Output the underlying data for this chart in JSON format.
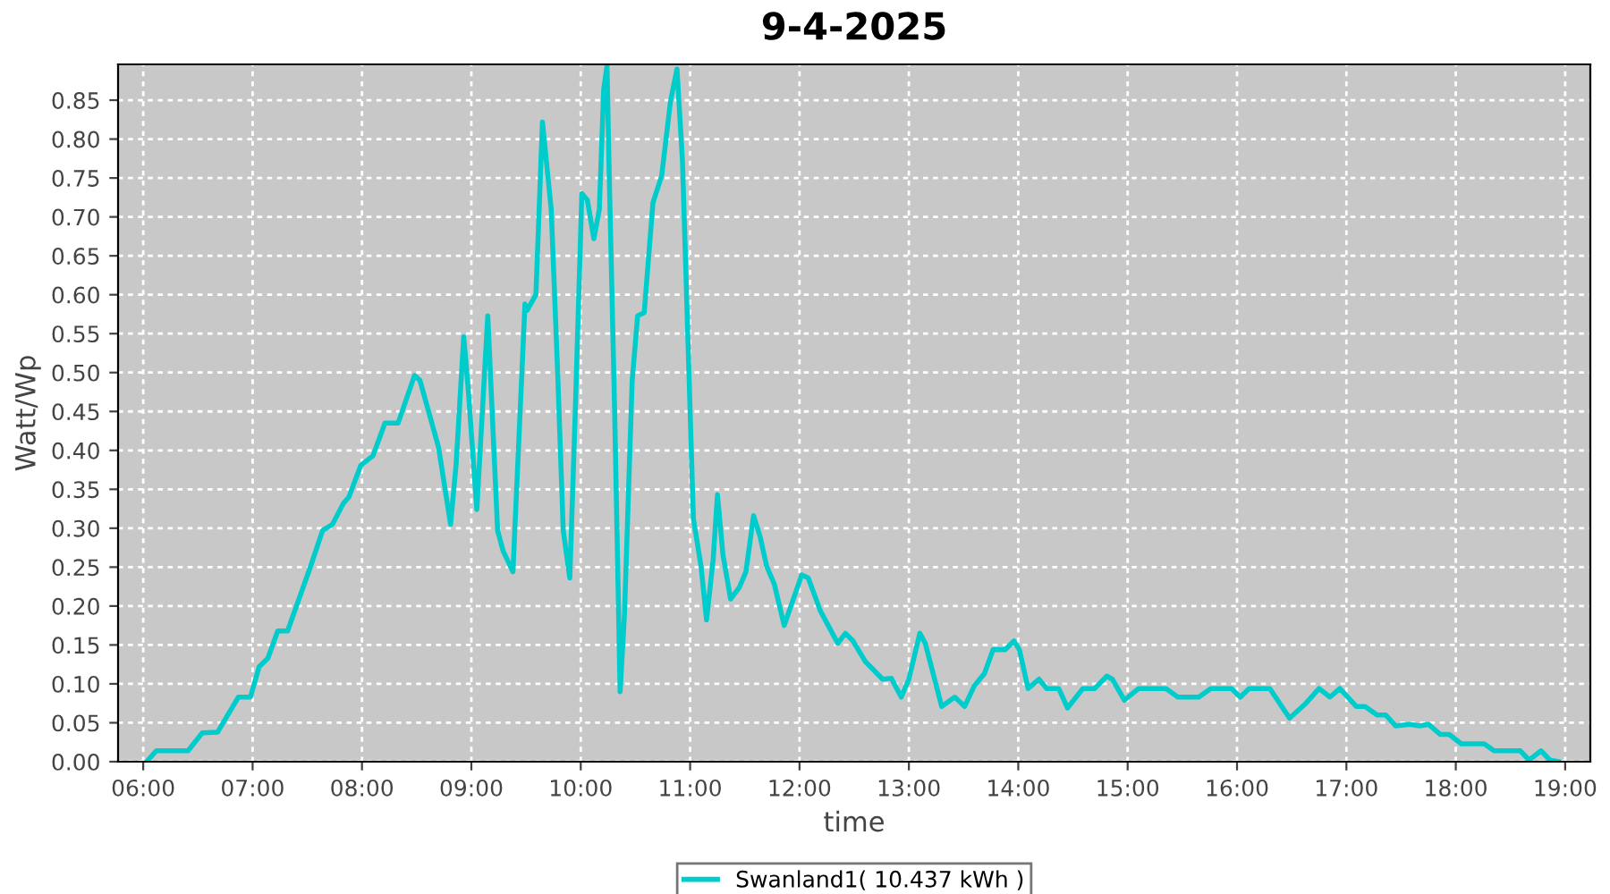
{
  "chart_data": {
    "type": "line",
    "title": "9-4-2025",
    "xlabel": "time",
    "ylabel": "Watt/Wp",
    "xlim": [
      5.77,
      19.23
    ],
    "ylim": [
      0,
      0.896
    ],
    "xticks": [
      {
        "value": 6,
        "label": "06:00"
      },
      {
        "value": 7,
        "label": "07:00"
      },
      {
        "value": 8,
        "label": "08:00"
      },
      {
        "value": 9,
        "label": "09:00"
      },
      {
        "value": 10,
        "label": "10:00"
      },
      {
        "value": 11,
        "label": "11:00"
      },
      {
        "value": 12,
        "label": "12:00"
      },
      {
        "value": 13,
        "label": "13:00"
      },
      {
        "value": 14,
        "label": "14:00"
      },
      {
        "value": 15,
        "label": "15:00"
      },
      {
        "value": 16,
        "label": "16:00"
      },
      {
        "value": 17,
        "label": "17:00"
      },
      {
        "value": 18,
        "label": "18:00"
      },
      {
        "value": 19,
        "label": "19:00"
      }
    ],
    "yticks": [
      {
        "value": 0,
        "label": "0.00"
      },
      {
        "value": 0.05,
        "label": "0.05"
      },
      {
        "value": 0.1,
        "label": "0.10"
      },
      {
        "value": 0.15,
        "label": "0.15"
      },
      {
        "value": 0.2,
        "label": "0.20"
      },
      {
        "value": 0.25,
        "label": "0.25"
      },
      {
        "value": 0.3,
        "label": "0.30"
      },
      {
        "value": 0.35,
        "label": "0.35"
      },
      {
        "value": 0.4,
        "label": "0.40"
      },
      {
        "value": 0.45,
        "label": "0.45"
      },
      {
        "value": 0.5,
        "label": "0.50"
      },
      {
        "value": 0.55,
        "label": "0.55"
      },
      {
        "value": 0.6,
        "label": "0.60"
      },
      {
        "value": 0.65,
        "label": "0.65"
      },
      {
        "value": 0.7,
        "label": "0.70"
      },
      {
        "value": 0.75,
        "label": "0.75"
      },
      {
        "value": 0.8,
        "label": "0.80"
      },
      {
        "value": 0.85,
        "label": "0.85"
      }
    ],
    "grid": true,
    "legend": "bottom",
    "marker": "none",
    "line_style": "solid",
    "series": [
      {
        "name": "Swanland1( 10.437 kWh )",
        "color": "#00cccc",
        "x": [
          6.03,
          6.12,
          6.41,
          6.54,
          6.68,
          6.87,
          6.98,
          7.06,
          7.14,
          7.23,
          7.32,
          7.53,
          7.64,
          7.73,
          7.83,
          7.88,
          7.99,
          8.1,
          8.21,
          8.33,
          8.48,
          8.53,
          8.7,
          8.81,
          8.86,
          8.93,
          8.97,
          9.05,
          9.15,
          9.24,
          9.29,
          9.38,
          9.49,
          9.51,
          9.59,
          9.65,
          9.73,
          9.79,
          9.84,
          9.9,
          9.95,
          10.01,
          10.06,
          10.12,
          10.17,
          10.21,
          10.24,
          10.26,
          10.31,
          10.36,
          10.4,
          10.47,
          10.52,
          10.58,
          10.66,
          10.74,
          10.82,
          10.88,
          10.93,
          10.99,
          11.03,
          11.1,
          11.15,
          11.21,
          11.25,
          11.3,
          11.37,
          11.45,
          11.51,
          11.58,
          11.64,
          11.7,
          11.77,
          11.86,
          12.02,
          12.08,
          12.19,
          12.35,
          12.42,
          12.49,
          12.6,
          12.76,
          12.84,
          12.93,
          13.0,
          13.1,
          13.15,
          13.3,
          13.42,
          13.51,
          13.6,
          13.69,
          13.77,
          13.88,
          13.96,
          14.01,
          14.09,
          14.19,
          14.26,
          14.37,
          14.45,
          14.59,
          14.7,
          14.81,
          14.86,
          14.97,
          15.1,
          15.35,
          15.46,
          15.65,
          15.76,
          15.95,
          16.03,
          16.11,
          16.3,
          16.48,
          16.63,
          16.75,
          16.85,
          16.94,
          17.09,
          17.17,
          17.28,
          17.36,
          17.45,
          17.58,
          17.67,
          17.75,
          17.86,
          17.94,
          18.05,
          18.26,
          18.35,
          18.59,
          18.67,
          18.78,
          18.86,
          18.94
        ],
        "values": [
          0.0,
          0.014,
          0.014,
          0.037,
          0.038,
          0.083,
          0.083,
          0.122,
          0.133,
          0.168,
          0.168,
          0.251,
          0.297,
          0.305,
          0.332,
          0.34,
          0.381,
          0.393,
          0.435,
          0.435,
          0.496,
          0.49,
          0.404,
          0.305,
          0.381,
          0.546,
          0.481,
          0.324,
          0.573,
          0.297,
          0.271,
          0.244,
          0.588,
          0.58,
          0.6,
          0.822,
          0.71,
          0.496,
          0.297,
          0.236,
          0.45,
          0.73,
          0.722,
          0.672,
          0.71,
          0.864,
          0.894,
          0.757,
          0.45,
          0.09,
          0.19,
          0.489,
          0.573,
          0.577,
          0.718,
          0.753,
          0.848,
          0.89,
          0.772,
          0.496,
          0.312,
          0.251,
          0.182,
          0.259,
          0.343,
          0.266,
          0.209,
          0.224,
          0.244,
          0.316,
          0.289,
          0.251,
          0.228,
          0.175,
          0.24,
          0.236,
          0.194,
          0.152,
          0.165,
          0.155,
          0.129,
          0.106,
          0.107,
          0.083,
          0.106,
          0.165,
          0.152,
          0.071,
          0.083,
          0.071,
          0.098,
          0.113,
          0.144,
          0.144,
          0.155,
          0.144,
          0.094,
          0.106,
          0.094,
          0.094,
          0.069,
          0.094,
          0.094,
          0.11,
          0.106,
          0.079,
          0.094,
          0.094,
          0.083,
          0.083,
          0.094,
          0.094,
          0.083,
          0.094,
          0.094,
          0.056,
          0.075,
          0.094,
          0.083,
          0.094,
          0.071,
          0.071,
          0.06,
          0.06,
          0.046,
          0.048,
          0.046,
          0.048,
          0.035,
          0.035,
          0.023,
          0.023,
          0.014,
          0.014,
          0.002,
          0.014,
          0.002,
          0.0
        ]
      }
    ]
  }
}
